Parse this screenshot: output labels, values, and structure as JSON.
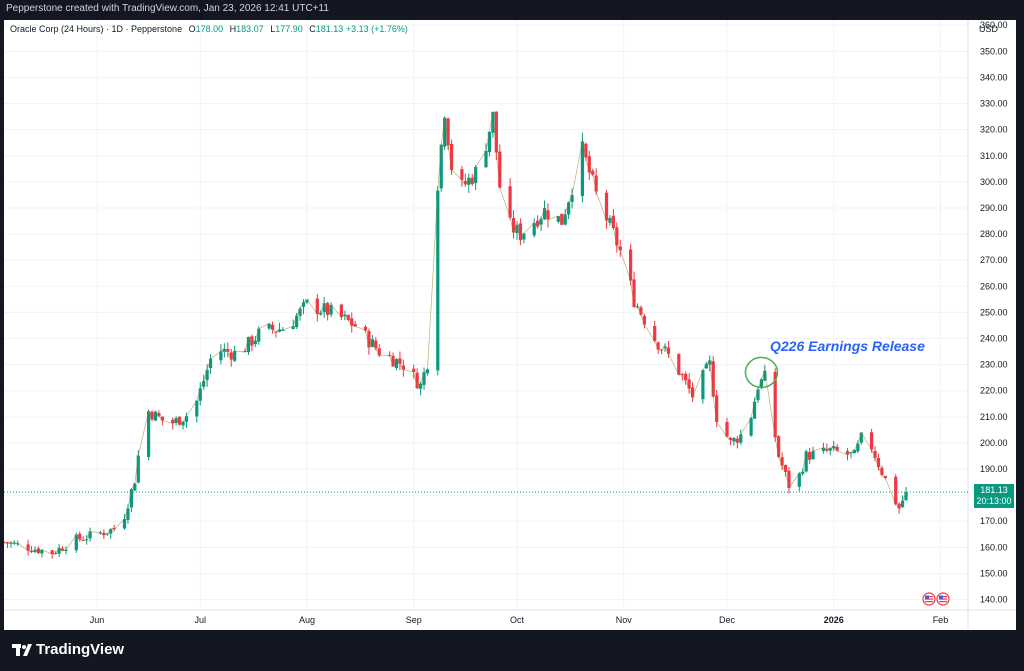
{
  "header": {
    "attribution": "Pepperstone created with TradingView.com, Jan 23, 2026 12:41 UTC+11"
  },
  "legend": {
    "symbol": "Oracle Corp (24 Hours) · 1D · Pepperstone",
    "open_label": "O",
    "open": "178.00",
    "high_label": "H",
    "high": "183.07",
    "low_label": "L",
    "low": "177.90",
    "close_label": "C",
    "close": "181.13",
    "change": "+3.13 (+1.76%)"
  },
  "currency": "USD",
  "last_price": {
    "price": "181.13",
    "countdown": "20:13:00"
  },
  "annotation": {
    "text": "Q226 Earnings Release"
  },
  "footer": {
    "brand": "TradingView"
  },
  "colors": {
    "up": "#089981",
    "down": "#f23645",
    "annotation": "#2962ff",
    "circle": "#4caf50",
    "overlay_line": "#8a7b1f"
  },
  "chart_data": {
    "type": "candlestick",
    "x_ticks": [
      "Jun",
      "Jul",
      "Aug",
      "Sep",
      "Oct",
      "Nov",
      "Dec",
      "2026",
      "Feb"
    ],
    "x_tick_dates": [
      "2025-06-01",
      "2025-07-01",
      "2025-08-01",
      "2025-09-01",
      "2025-10-01",
      "2025-11-01",
      "2025-12-01",
      "2026-01-01",
      "2026-02-01"
    ],
    "y_ticks": [
      140,
      150,
      160,
      170,
      180,
      190,
      200,
      210,
      220,
      230,
      240,
      250,
      260,
      270,
      280,
      290,
      300,
      310,
      320,
      330,
      340,
      350,
      360
    ],
    "ylim": [
      136,
      362
    ],
    "xlim": [
      "2025-05-05",
      "2026-02-09"
    ],
    "anchors": [
      [
        "2025-05-05",
        162
      ],
      [
        "2025-05-12",
        160
      ],
      [
        "2025-05-19",
        158
      ],
      [
        "2025-05-26",
        163
      ],
      [
        "2025-06-01",
        165
      ],
      [
        "2025-06-08",
        168
      ],
      [
        "2025-06-12",
        186
      ],
      [
        "2025-06-15",
        213
      ],
      [
        "2025-06-22",
        207
      ],
      [
        "2025-06-29",
        212
      ],
      [
        "2025-07-01",
        220
      ],
      [
        "2025-07-05",
        236
      ],
      [
        "2025-07-12",
        234
      ],
      [
        "2025-07-19",
        243
      ],
      [
        "2025-07-26",
        244
      ],
      [
        "2025-08-01",
        253
      ],
      [
        "2025-08-08",
        250
      ],
      [
        "2025-08-15",
        245
      ],
      [
        "2025-08-22",
        235
      ],
      [
        "2025-08-29",
        230
      ],
      [
        "2025-09-03",
        222
      ],
      [
        "2025-09-07",
        240
      ],
      [
        "2025-09-08",
        300
      ],
      [
        "2025-09-10",
        328
      ],
      [
        "2025-09-13",
        295
      ],
      [
        "2025-09-20",
        305
      ],
      [
        "2025-09-24",
        325
      ],
      [
        "2025-09-27",
        285
      ],
      [
        "2025-10-02",
        280
      ],
      [
        "2025-10-09",
        289
      ],
      [
        "2025-10-14",
        285
      ],
      [
        "2025-10-20",
        312
      ],
      [
        "2025-10-24",
        295
      ],
      [
        "2025-10-29",
        280
      ],
      [
        "2025-11-01",
        270
      ],
      [
        "2025-11-04",
        255
      ],
      [
        "2025-11-10",
        240
      ],
      [
        "2025-11-16",
        230
      ],
      [
        "2025-11-21",
        218
      ],
      [
        "2025-11-26",
        230
      ],
      [
        "2025-11-28",
        210
      ],
      [
        "2025-12-02",
        200
      ],
      [
        "2025-12-07",
        205
      ],
      [
        "2025-12-10",
        222
      ],
      [
        "2025-12-12",
        225
      ],
      [
        "2025-12-16",
        195
      ],
      [
        "2025-12-20",
        180
      ],
      [
        "2025-12-24",
        195
      ],
      [
        "2025-12-31",
        197
      ],
      [
        "2026-01-07",
        195
      ],
      [
        "2026-01-10",
        205
      ],
      [
        "2026-01-14",
        192
      ],
      [
        "2026-01-18",
        180
      ],
      [
        "2026-01-20",
        175
      ],
      [
        "2026-01-22",
        181
      ]
    ],
    "annotation_point": [
      "2025-12-11",
      227
    ]
  }
}
